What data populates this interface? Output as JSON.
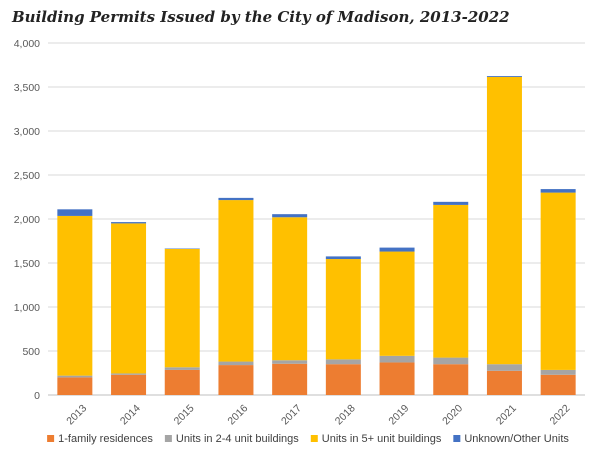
{
  "chart_data": {
    "type": "bar",
    "stacked": true,
    "title": "Building Permits Issued by the City of Madison, 2013-2022",
    "xlabel": "",
    "ylabel": "",
    "ylim": [
      0,
      4000
    ],
    "yticks": [
      0,
      500,
      1000,
      1500,
      2000,
      2500,
      3000,
      3500,
      4000
    ],
    "ytick_labels": [
      "0",
      "500",
      "1,000",
      "1,500",
      "2,000",
      "2,500",
      "3,000",
      "3,500",
      "4,000"
    ],
    "grid": true,
    "legend_position": "bottom",
    "categories": [
      "2013",
      "2014",
      "2015",
      "2016",
      "2017",
      "2018",
      "2019",
      "2020",
      "2021",
      "2022"
    ],
    "series": [
      {
        "name": "1-family residences",
        "color": "#ED7D31",
        "values": [
          200,
          230,
          285,
          340,
          355,
          350,
          370,
          350,
          275,
          230
        ]
      },
      {
        "name": "Units in 2-4 unit buildings",
        "color": "#A5A5A5",
        "values": [
          20,
          15,
          30,
          40,
          40,
          55,
          75,
          75,
          75,
          55
        ]
      },
      {
        "name": "Units in 5+ unit buildings",
        "color": "#FFC000",
        "values": [
          1815,
          1705,
          1345,
          1835,
          1625,
          1140,
          1185,
          1735,
          3265,
          2015
        ]
      },
      {
        "name": "Unknown/Other Units",
        "color": "#4472C4",
        "values": [
          75,
          15,
          5,
          25,
          35,
          30,
          45,
          35,
          10,
          40
        ]
      }
    ]
  }
}
